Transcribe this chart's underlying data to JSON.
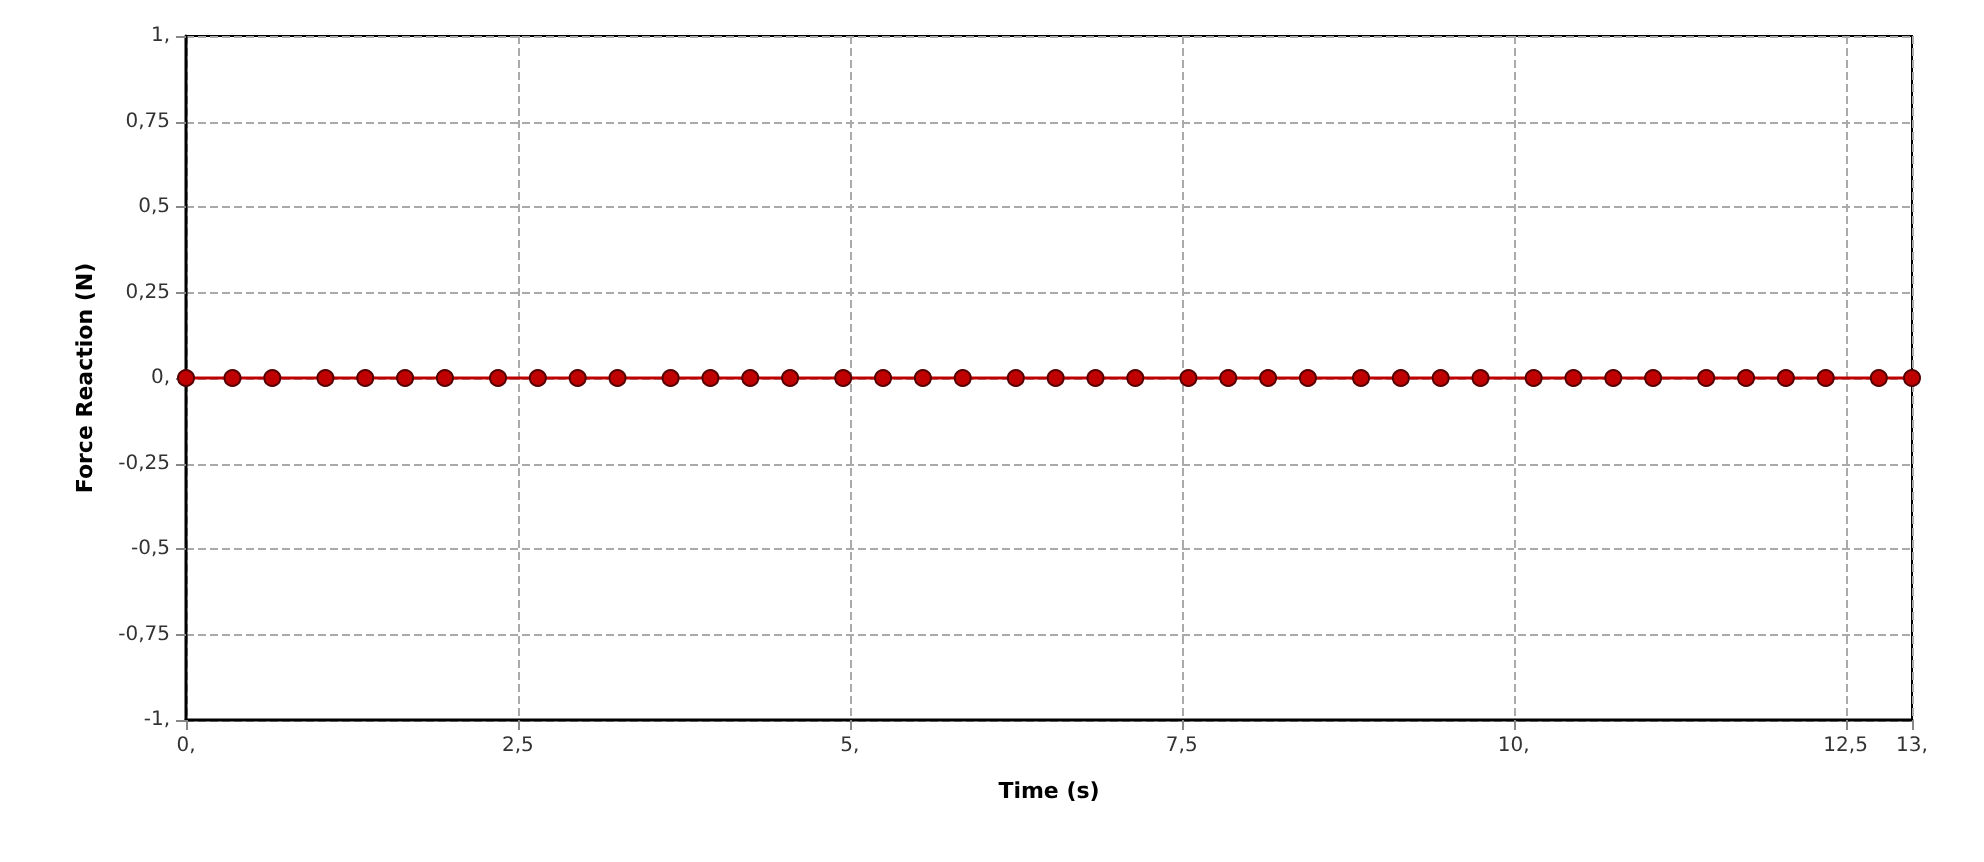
{
  "chart_data": {
    "type": "line",
    "xlabel": "Time (s)",
    "ylabel": "Force Reaction (N)",
    "x": [
      0,
      0.35,
      0.65,
      1.05,
      1.35,
      1.65,
      1.95,
      2.35,
      2.65,
      2.95,
      3.25,
      3.65,
      3.95,
      4.25,
      4.55,
      4.95,
      5.25,
      5.55,
      5.85,
      6.25,
      6.55,
      6.85,
      7.15,
      7.55,
      7.85,
      8.15,
      8.45,
      8.85,
      9.15,
      9.45,
      9.75,
      10.15,
      10.45,
      10.75,
      11.05,
      11.45,
      11.75,
      12.05,
      12.35,
      12.75,
      13
    ],
    "series": [
      {
        "color": "#c00000",
        "values": [
          0,
          0,
          0,
          0,
          0,
          0,
          0,
          0,
          0,
          0,
          0,
          0,
          0,
          0,
          0,
          0,
          0,
          0,
          0,
          0,
          0,
          0,
          0,
          0,
          0,
          0,
          0,
          0,
          0,
          0,
          0,
          0,
          0,
          0,
          0,
          0,
          0,
          0,
          0,
          0,
          0
        ]
      }
    ],
    "xlim": [
      0,
      13
    ],
    "xticks": [
      {
        "value": 0,
        "label": "0,"
      },
      {
        "value": 2.5,
        "label": "2,5"
      },
      {
        "value": 5,
        "label": "5,"
      },
      {
        "value": 7.5,
        "label": "7,5"
      },
      {
        "value": 10,
        "label": "10,"
      },
      {
        "value": 12.5,
        "label": "12,5"
      },
      {
        "value": 13,
        "label": "13,"
      }
    ],
    "ylim": [
      -1,
      1
    ],
    "yticks": [
      {
        "value": -1,
        "label": "-1,"
      },
      {
        "value": -0.75,
        "label": "-0,75"
      },
      {
        "value": -0.5,
        "label": "-0,5"
      },
      {
        "value": -0.25,
        "label": "-0,25"
      },
      {
        "value": 0,
        "label": "0,"
      },
      {
        "value": 0.25,
        "label": "0,25"
      },
      {
        "value": 0.5,
        "label": "0,5"
      },
      {
        "value": 0.75,
        "label": "0,75"
      },
      {
        "value": 1,
        "label": "1,"
      }
    ],
    "grid": true,
    "marker": "circle",
    "line_style": "solid"
  }
}
